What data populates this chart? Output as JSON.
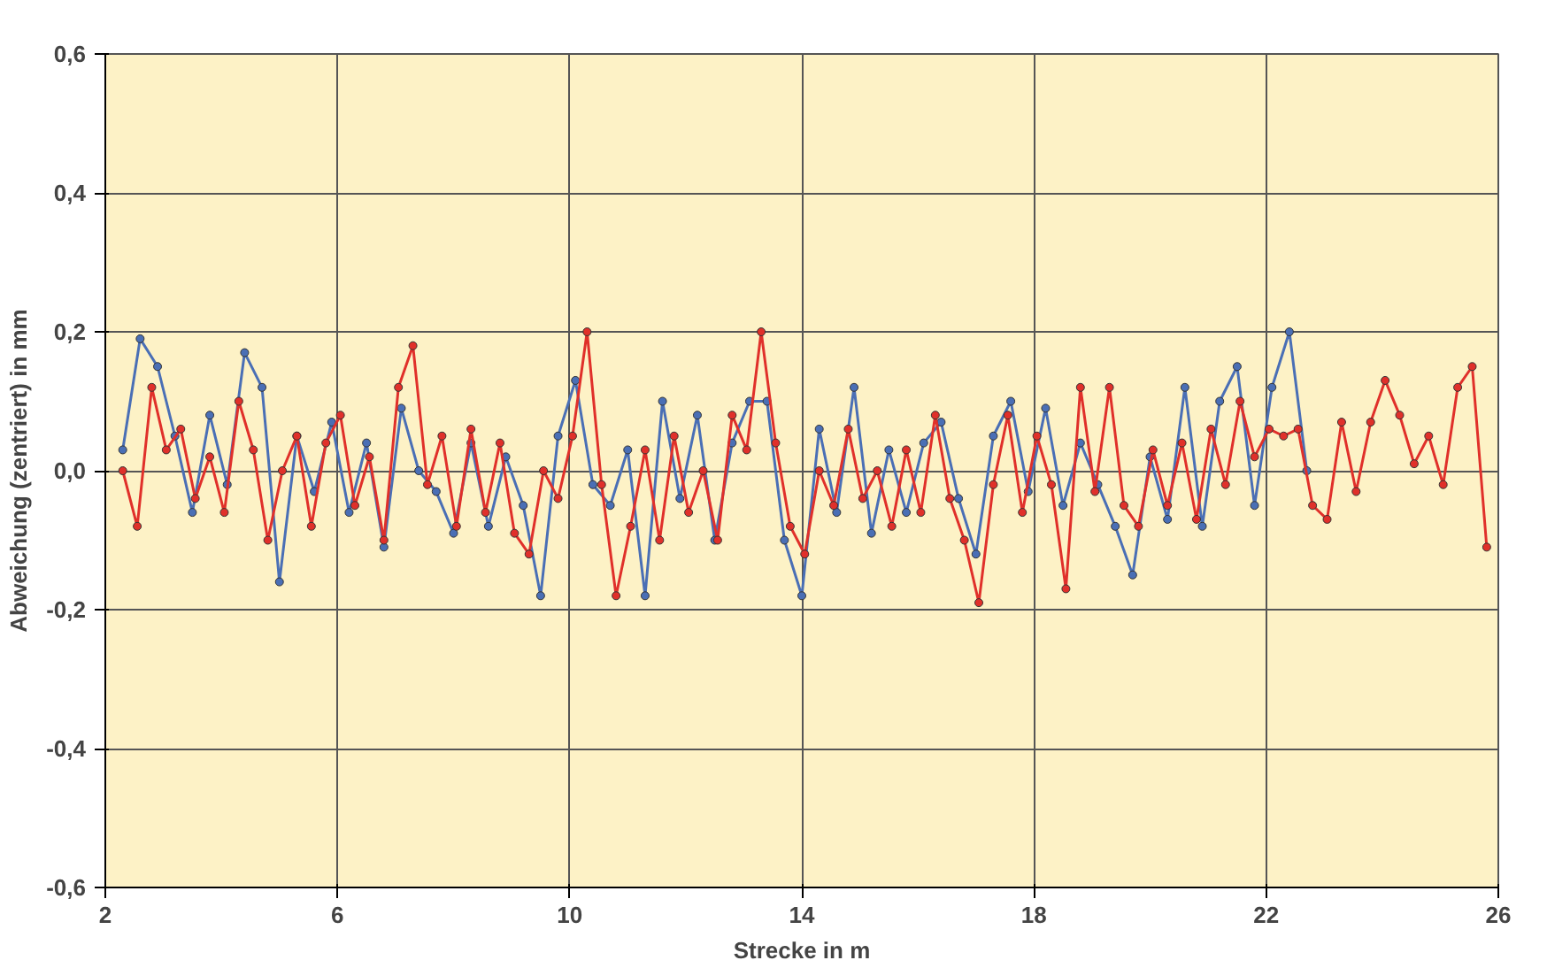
{
  "chart_data": {
    "type": "line",
    "xlabel": "Strecke in m",
    "ylabel": "Abweichung (zentriert) in mm",
    "xlim": [
      2,
      26
    ],
    "xticks": [
      2,
      6,
      10,
      14,
      18,
      22,
      26
    ],
    "ylim": [
      -0.6,
      0.6
    ],
    "yticks": [
      {
        "value": -0.6,
        "label": "-0,6"
      },
      {
        "value": -0.4,
        "label": "-0,4"
      },
      {
        "value": -0.2,
        "label": "-0,2"
      },
      {
        "value": 0,
        "label": "0,0"
      },
      {
        "value": 0.2,
        "label": "0,2"
      },
      {
        "value": 0.4,
        "label": "0,4"
      },
      {
        "value": 0.6,
        "label": "0,6"
      }
    ],
    "grid": true,
    "marker": "circle",
    "line_style": "solid",
    "series": [
      {
        "color": "#4a6fb5",
        "x": [
          2.3,
          2.6,
          2.9,
          3.2,
          3.5,
          3.8,
          4.1,
          4.4,
          4.7,
          5.0,
          5.3,
          5.6,
          5.9,
          6.2,
          6.5,
          6.8,
          7.1,
          7.4,
          7.7,
          8.0,
          8.3,
          8.6,
          8.9,
          9.2,
          9.5,
          9.8,
          10.1,
          10.4,
          10.7,
          11.0,
          11.3,
          11.6,
          11.9,
          12.2,
          12.5,
          12.8,
          13.1,
          13.4,
          13.7,
          14.0,
          14.3,
          14.6,
          14.9,
          15.2,
          15.5,
          15.8,
          16.1,
          16.4,
          16.7,
          17.0,
          17.3,
          17.6,
          17.9,
          18.2,
          18.5,
          18.8,
          19.1,
          19.4,
          19.7,
          20.0,
          20.3,
          20.6,
          20.9,
          21.2,
          21.5,
          21.8,
          22.1,
          22.4,
          22.7
        ],
        "values": [
          0.03,
          0.19,
          0.15,
          0.05,
          -0.06,
          0.08,
          -0.02,
          0.17,
          0.12,
          -0.16,
          0.05,
          -0.03,
          0.07,
          -0.06,
          0.04,
          -0.11,
          0.09,
          0.0,
          -0.03,
          -0.09,
          0.04,
          -0.08,
          0.02,
          -0.05,
          -0.18,
          0.05,
          0.13,
          -0.02,
          -0.05,
          0.03,
          -0.18,
          0.1,
          -0.04,
          0.08,
          -0.1,
          0.04,
          0.1,
          0.1,
          -0.1,
          -0.18,
          0.06,
          -0.06,
          0.12,
          -0.09,
          0.03,
          -0.06,
          0.04,
          0.07,
          -0.04,
          -0.12,
          0.05,
          0.1,
          -0.03,
          0.09,
          -0.05,
          0.04,
          -0.02,
          -0.08,
          -0.15,
          0.02,
          -0.07,
          0.12,
          -0.08,
          0.1,
          0.15,
          -0.05,
          0.12,
          0.2,
          0.0
        ]
      },
      {
        "color": "#e0302a",
        "x": [
          2.3,
          2.55,
          2.8,
          3.05,
          3.3,
          3.55,
          3.8,
          4.05,
          4.3,
          4.55,
          4.8,
          5.05,
          5.3,
          5.55,
          5.8,
          6.05,
          6.3,
          6.55,
          6.8,
          7.05,
          7.3,
          7.55,
          7.8,
          8.05,
          8.3,
          8.55,
          8.8,
          9.05,
          9.3,
          9.55,
          9.8,
          10.05,
          10.3,
          10.55,
          10.8,
          11.05,
          11.3,
          11.55,
          11.8,
          12.05,
          12.3,
          12.55,
          12.8,
          13.05,
          13.3,
          13.55,
          13.8,
          14.05,
          14.3,
          14.55,
          14.8,
          15.05,
          15.3,
          15.55,
          15.8,
          16.05,
          16.3,
          16.55,
          16.8,
          17.05,
          17.3,
          17.55,
          17.8,
          18.05,
          18.3,
          18.55,
          18.8,
          19.05,
          19.3,
          19.55,
          19.8,
          20.05,
          20.3,
          20.55,
          20.8,
          21.05,
          21.3,
          21.55,
          21.8,
          22.05,
          22.3,
          22.55,
          22.8,
          23.05,
          23.3,
          23.55,
          23.8,
          24.05,
          24.3,
          24.55,
          24.8,
          25.05,
          25.3,
          25.55,
          25.8
        ],
        "values": [
          0.0,
          -0.08,
          0.12,
          0.03,
          0.06,
          -0.04,
          0.02,
          -0.06,
          0.1,
          0.03,
          -0.1,
          0.0,
          0.05,
          -0.08,
          0.04,
          0.08,
          -0.05,
          0.02,
          -0.1,
          0.12,
          0.18,
          -0.02,
          0.05,
          -0.08,
          0.06,
          -0.06,
          0.04,
          -0.09,
          -0.12,
          0.0,
          -0.04,
          0.05,
          0.2,
          -0.02,
          -0.18,
          -0.08,
          0.03,
          -0.1,
          0.05,
          -0.06,
          0.0,
          -0.1,
          0.08,
          0.03,
          0.2,
          0.04,
          -0.08,
          -0.12,
          0.0,
          -0.05,
          0.06,
          -0.04,
          0.0,
          -0.08,
          0.03,
          -0.06,
          0.08,
          -0.04,
          -0.1,
          -0.19,
          -0.02,
          0.08,
          -0.06,
          0.05,
          -0.02,
          -0.17,
          0.12,
          -0.03,
          0.12,
          -0.05,
          -0.08,
          0.03,
          -0.05,
          0.04,
          -0.07,
          0.06,
          -0.02,
          0.1,
          0.02,
          0.06,
          0.05,
          0.06,
          -0.05,
          -0.07,
          0.07,
          -0.03,
          0.07,
          0.13,
          0.08,
          0.01,
          0.05,
          -0.02,
          0.12,
          0.15,
          -0.11
        ]
      }
    ]
  }
}
